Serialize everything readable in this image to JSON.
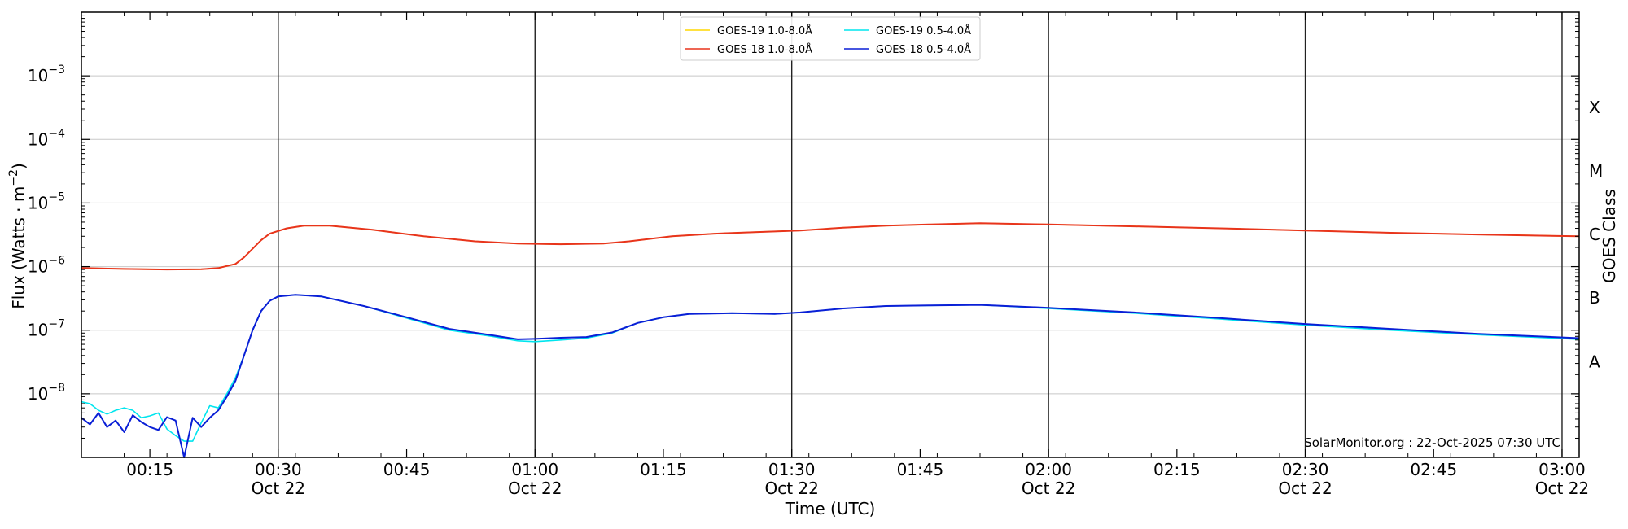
{
  "chart_data": {
    "type": "line",
    "xlabel": "Time (UTC)",
    "ylabel_main": "Flux (Watts · m",
    "ylabel_sup": "−2",
    "ylabel_close": ")",
    "right_label": "GOES Class",
    "credit": "SolarMonitor.org : 22-Oct-2025 07:30 UTC",
    "y_scale": "log",
    "ylim": [
      1e-09,
      0.01
    ],
    "xlim": [
      "2025-10-22T00:07:00Z",
      "2025-10-22T03:02:00Z"
    ],
    "grid": "horizontal at decades",
    "legend_placement": "top-center",
    "x_ticks": [
      {
        "time": "2025-10-22T00:15:00Z",
        "label": "00:15",
        "sublabel": ""
      },
      {
        "time": "2025-10-22T00:30:00Z",
        "label": "00:30",
        "sublabel": "Oct 22"
      },
      {
        "time": "2025-10-22T00:45:00Z",
        "label": "00:45",
        "sublabel": ""
      },
      {
        "time": "2025-10-22T01:00:00Z",
        "label": "01:00",
        "sublabel": "Oct 22"
      },
      {
        "time": "2025-10-22T01:15:00Z",
        "label": "01:15",
        "sublabel": ""
      },
      {
        "time": "2025-10-22T01:30:00Z",
        "label": "01:30",
        "sublabel": "Oct 22"
      },
      {
        "time": "2025-10-22T01:45:00Z",
        "label": "01:45",
        "sublabel": ""
      },
      {
        "time": "2025-10-22T02:00:00Z",
        "label": "02:00",
        "sublabel": "Oct 22"
      },
      {
        "time": "2025-10-22T02:15:00Z",
        "label": "02:15",
        "sublabel": ""
      },
      {
        "time": "2025-10-22T02:30:00Z",
        "label": "02:30",
        "sublabel": "Oct 22"
      },
      {
        "time": "2025-10-22T02:45:00Z",
        "label": "02:45",
        "sublabel": ""
      },
      {
        "time": "2025-10-22T03:00:00Z",
        "label": "03:00",
        "sublabel": "Oct 22"
      }
    ],
    "vertical_lines": [
      "2025-10-22T00:30:00Z",
      "2025-10-22T01:00:00Z",
      "2025-10-22T01:30:00Z",
      "2025-10-22T02:00:00Z",
      "2025-10-22T02:30:00Z",
      "2025-10-22T03:00:00Z"
    ],
    "y_ticks": [
      {
        "value": 1e-08,
        "base": "10",
        "exp": "−8"
      },
      {
        "value": 1e-07,
        "base": "10",
        "exp": "−7"
      },
      {
        "value": 1e-06,
        "base": "10",
        "exp": "−6"
      },
      {
        "value": 1e-05,
        "base": "10",
        "exp": "−5"
      },
      {
        "value": 0.0001,
        "base": "10",
        "exp": "−4"
      },
      {
        "value": 0.001,
        "base": "10",
        "exp": "−3"
      }
    ],
    "goes_classes": [
      {
        "label": "A",
        "value": 3.2e-08
      },
      {
        "label": "B",
        "value": 3.2e-07
      },
      {
        "label": "C",
        "value": 3.2e-06
      },
      {
        "label": "M",
        "value": 3.2e-05
      },
      {
        "label": "X",
        "value": 0.00032
      }
    ],
    "series": [
      {
        "name": "GOES-19 1.0-8.0Å",
        "color": "#ffd700",
        "width": 1.6,
        "points": [
          [
            "2025-10-22T00:07:00Z",
            9.5e-07
          ],
          [
            "2025-10-22T00:12:00Z",
            9.2e-07
          ],
          [
            "2025-10-22T00:17:00Z",
            9e-07
          ],
          [
            "2025-10-22T00:21:00Z",
            9.1e-07
          ],
          [
            "2025-10-22T00:23:00Z",
            9.5e-07
          ],
          [
            "2025-10-22T00:25:00Z",
            1.1e-06
          ],
          [
            "2025-10-22T00:26:00Z",
            1.4e-06
          ],
          [
            "2025-10-22T00:28:00Z",
            2.6e-06
          ],
          [
            "2025-10-22T00:29:00Z",
            3.3e-06
          ],
          [
            "2025-10-22T00:31:00Z",
            4e-06
          ],
          [
            "2025-10-22T00:33:00Z",
            4.4e-06
          ],
          [
            "2025-10-22T00:36:00Z",
            4.4e-06
          ],
          [
            "2025-10-22T00:41:00Z",
            3.8e-06
          ],
          [
            "2025-10-22T00:47:00Z",
            3e-06
          ],
          [
            "2025-10-22T00:53:00Z",
            2.5e-06
          ],
          [
            "2025-10-22T00:58:00Z",
            2.3e-06
          ],
          [
            "2025-10-22T01:03:00Z",
            2.25e-06
          ],
          [
            "2025-10-22T01:08:00Z",
            2.3e-06
          ],
          [
            "2025-10-22T01:11:00Z",
            2.5e-06
          ],
          [
            "2025-10-22T01:16:00Z",
            3e-06
          ],
          [
            "2025-10-22T01:21:00Z",
            3.3e-06
          ],
          [
            "2025-10-22T01:26:00Z",
            3.5e-06
          ],
          [
            "2025-10-22T01:31:00Z",
            3.7e-06
          ],
          [
            "2025-10-22T01:36:00Z",
            4.1e-06
          ],
          [
            "2025-10-22T01:41:00Z",
            4.4e-06
          ],
          [
            "2025-10-22T01:46:00Z",
            4.6e-06
          ],
          [
            "2025-10-22T01:52:00Z",
            4.8e-06
          ],
          [
            "2025-10-22T02:00:00Z",
            4.6e-06
          ],
          [
            "2025-10-22T02:10:00Z",
            4.3e-06
          ],
          [
            "2025-10-22T02:20:00Z",
            4e-06
          ],
          [
            "2025-10-22T02:30:00Z",
            3.7e-06
          ],
          [
            "2025-10-22T02:40:00Z",
            3.4e-06
          ],
          [
            "2025-10-22T02:50:00Z",
            3.2e-06
          ],
          [
            "2025-10-22T03:02:00Z",
            3e-06
          ]
        ]
      },
      {
        "name": "GOES-18 1.0-8.0Å",
        "color": "#e8341c",
        "width": 2,
        "points": [
          [
            "2025-10-22T00:07:00Z",
            9.5e-07
          ],
          [
            "2025-10-22T00:12:00Z",
            9.2e-07
          ],
          [
            "2025-10-22T00:17:00Z",
            9e-07
          ],
          [
            "2025-10-22T00:21:00Z",
            9.1e-07
          ],
          [
            "2025-10-22T00:23:00Z",
            9.5e-07
          ],
          [
            "2025-10-22T00:25:00Z",
            1.1e-06
          ],
          [
            "2025-10-22T00:26:00Z",
            1.4e-06
          ],
          [
            "2025-10-22T00:28:00Z",
            2.6e-06
          ],
          [
            "2025-10-22T00:29:00Z",
            3.3e-06
          ],
          [
            "2025-10-22T00:31:00Z",
            4e-06
          ],
          [
            "2025-10-22T00:33:00Z",
            4.4e-06
          ],
          [
            "2025-10-22T00:36:00Z",
            4.4e-06
          ],
          [
            "2025-10-22T00:41:00Z",
            3.8e-06
          ],
          [
            "2025-10-22T00:47:00Z",
            3e-06
          ],
          [
            "2025-10-22T00:53:00Z",
            2.5e-06
          ],
          [
            "2025-10-22T00:58:00Z",
            2.3e-06
          ],
          [
            "2025-10-22T01:03:00Z",
            2.25e-06
          ],
          [
            "2025-10-22T01:08:00Z",
            2.3e-06
          ],
          [
            "2025-10-22T01:11:00Z",
            2.5e-06
          ],
          [
            "2025-10-22T01:16:00Z",
            3e-06
          ],
          [
            "2025-10-22T01:21:00Z",
            3.3e-06
          ],
          [
            "2025-10-22T01:26:00Z",
            3.5e-06
          ],
          [
            "2025-10-22T01:31:00Z",
            3.7e-06
          ],
          [
            "2025-10-22T01:36:00Z",
            4.1e-06
          ],
          [
            "2025-10-22T01:41:00Z",
            4.4e-06
          ],
          [
            "2025-10-22T01:46:00Z",
            4.6e-06
          ],
          [
            "2025-10-22T01:52:00Z",
            4.8e-06
          ],
          [
            "2025-10-22T02:00:00Z",
            4.6e-06
          ],
          [
            "2025-10-22T02:10:00Z",
            4.3e-06
          ],
          [
            "2025-10-22T02:20:00Z",
            4e-06
          ],
          [
            "2025-10-22T02:30:00Z",
            3.7e-06
          ],
          [
            "2025-10-22T02:40:00Z",
            3.4e-06
          ],
          [
            "2025-10-22T02:50:00Z",
            3.2e-06
          ],
          [
            "2025-10-22T03:02:00Z",
            3e-06
          ]
        ]
      },
      {
        "name": "GOES-19 0.5-4.0Å",
        "color": "#00e5ee",
        "width": 1.6,
        "points": [
          [
            "2025-10-22T00:07:00Z",
            7.5e-09
          ],
          [
            "2025-10-22T00:08:00Z",
            7e-09
          ],
          [
            "2025-10-22T00:09:00Z",
            5.5e-09
          ],
          [
            "2025-10-22T00:10:00Z",
            4.8e-09
          ],
          [
            "2025-10-22T00:11:00Z",
            5.5e-09
          ],
          [
            "2025-10-22T00:12:00Z",
            6e-09
          ],
          [
            "2025-10-22T00:13:00Z",
            5.5e-09
          ],
          [
            "2025-10-22T00:14:00Z",
            4.2e-09
          ],
          [
            "2025-10-22T00:15:00Z",
            4.5e-09
          ],
          [
            "2025-10-22T00:16:00Z",
            5e-09
          ],
          [
            "2025-10-22T00:17:00Z",
            2.8e-09
          ],
          [
            "2025-10-22T00:18:00Z",
            2.2e-09
          ],
          [
            "2025-10-22T00:19:00Z",
            1.8e-09
          ],
          [
            "2025-10-22T00:20:00Z",
            1.8e-09
          ],
          [
            "2025-10-22T00:21:00Z",
            3.5e-09
          ],
          [
            "2025-10-22T00:22:00Z",
            6.5e-09
          ],
          [
            "2025-10-22T00:23:00Z",
            6e-09
          ],
          [
            "2025-10-22T00:24:00Z",
            1e-08
          ],
          [
            "2025-10-22T00:25:00Z",
            1.8e-08
          ],
          [
            "2025-10-22T00:26:00Z",
            4e-08
          ],
          [
            "2025-10-22T00:27:00Z",
            1e-07
          ],
          [
            "2025-10-22T00:28:00Z",
            2e-07
          ],
          [
            "2025-10-22T00:29:00Z",
            2.9e-07
          ],
          [
            "2025-10-22T00:30:00Z",
            3.4e-07
          ],
          [
            "2025-10-22T00:32:00Z",
            3.6e-07
          ],
          [
            "2025-10-22T00:35:00Z",
            3.4e-07
          ],
          [
            "2025-10-22T00:40:00Z",
            2.4e-07
          ],
          [
            "2025-10-22T00:45:00Z",
            1.55e-07
          ],
          [
            "2025-10-22T00:50:00Z",
            1e-07
          ],
          [
            "2025-10-22T00:55:00Z",
            8e-08
          ],
          [
            "2025-10-22T00:58:00Z",
            6.8e-08
          ],
          [
            "2025-10-22T01:00:00Z",
            6.6e-08
          ],
          [
            "2025-10-22T01:03:00Z",
            7e-08
          ],
          [
            "2025-10-22T01:06:00Z",
            7.5e-08
          ],
          [
            "2025-10-22T01:09:00Z",
            9e-08
          ],
          [
            "2025-10-22T01:12:00Z",
            1.3e-07
          ],
          [
            "2025-10-22T01:15:00Z",
            1.6e-07
          ],
          [
            "2025-10-22T01:18:00Z",
            1.8e-07
          ],
          [
            "2025-10-22T01:23:00Z",
            1.85e-07
          ],
          [
            "2025-10-22T01:28:00Z",
            1.8e-07
          ],
          [
            "2025-10-22T01:31:00Z",
            1.9e-07
          ],
          [
            "2025-10-22T01:36:00Z",
            2.2e-07
          ],
          [
            "2025-10-22T01:41:00Z",
            2.4e-07
          ],
          [
            "2025-10-22T01:46:00Z",
            2.45e-07
          ],
          [
            "2025-10-22T01:52:00Z",
            2.5e-07
          ],
          [
            "2025-10-22T02:00:00Z",
            2.2e-07
          ],
          [
            "2025-10-22T02:10:00Z",
            1.85e-07
          ],
          [
            "2025-10-22T02:20:00Z",
            1.5e-07
          ],
          [
            "2025-10-22T02:30:00Z",
            1.2e-07
          ],
          [
            "2025-10-22T02:40:00Z",
            1e-07
          ],
          [
            "2025-10-22T02:50:00Z",
            8.5e-08
          ],
          [
            "2025-10-22T03:02:00Z",
            7.2e-08
          ]
        ]
      },
      {
        "name": "GOES-18 0.5-4.0Å",
        "color": "#0a1fd6",
        "width": 2,
        "points": [
          [
            "2025-10-22T00:07:00Z",
            4.2e-09
          ],
          [
            "2025-10-22T00:08:00Z",
            3.3e-09
          ],
          [
            "2025-10-22T00:09:00Z",
            5e-09
          ],
          [
            "2025-10-22T00:10:00Z",
            3e-09
          ],
          [
            "2025-10-22T00:11:00Z",
            3.8e-09
          ],
          [
            "2025-10-22T00:12:00Z",
            2.5e-09
          ],
          [
            "2025-10-22T00:13:00Z",
            4.6e-09
          ],
          [
            "2025-10-22T00:14:00Z",
            3.6e-09
          ],
          [
            "2025-10-22T00:15:00Z",
            3e-09
          ],
          [
            "2025-10-22T00:16:00Z",
            2.7e-09
          ],
          [
            "2025-10-22T00:17:00Z",
            4.3e-09
          ],
          [
            "2025-10-22T00:18:00Z",
            3.8e-09
          ],
          [
            "2025-10-22T00:19:00Z",
            1e-09
          ],
          [
            "2025-10-22T00:20:00Z",
            4.2e-09
          ],
          [
            "2025-10-22T00:21:00Z",
            3e-09
          ],
          [
            "2025-10-22T00:22:00Z",
            4.2e-09
          ],
          [
            "2025-10-22T00:23:00Z",
            5.5e-09
          ],
          [
            "2025-10-22T00:24:00Z",
            9e-09
          ],
          [
            "2025-10-22T00:25:00Z",
            1.6e-08
          ],
          [
            "2025-10-22T00:26:00Z",
            4e-08
          ],
          [
            "2025-10-22T00:27:00Z",
            1e-07
          ],
          [
            "2025-10-22T00:28:00Z",
            2e-07
          ],
          [
            "2025-10-22T00:29:00Z",
            2.9e-07
          ],
          [
            "2025-10-22T00:30:00Z",
            3.4e-07
          ],
          [
            "2025-10-22T00:32:00Z",
            3.6e-07
          ],
          [
            "2025-10-22T00:35:00Z",
            3.4e-07
          ],
          [
            "2025-10-22T00:40:00Z",
            2.4e-07
          ],
          [
            "2025-10-22T00:45:00Z",
            1.6e-07
          ],
          [
            "2025-10-22T00:50:00Z",
            1.05e-07
          ],
          [
            "2025-10-22T00:55:00Z",
            8.3e-08
          ],
          [
            "2025-10-22T00:58:00Z",
            7.2e-08
          ],
          [
            "2025-10-22T01:00:00Z",
            7.3e-08
          ],
          [
            "2025-10-22T01:03:00Z",
            7.6e-08
          ],
          [
            "2025-10-22T01:06:00Z",
            7.8e-08
          ],
          [
            "2025-10-22T01:09:00Z",
            9.2e-08
          ],
          [
            "2025-10-22T01:12:00Z",
            1.3e-07
          ],
          [
            "2025-10-22T01:15:00Z",
            1.6e-07
          ],
          [
            "2025-10-22T01:18:00Z",
            1.8e-07
          ],
          [
            "2025-10-22T01:23:00Z",
            1.85e-07
          ],
          [
            "2025-10-22T01:28:00Z",
            1.8e-07
          ],
          [
            "2025-10-22T01:31:00Z",
            1.9e-07
          ],
          [
            "2025-10-22T01:36:00Z",
            2.2e-07
          ],
          [
            "2025-10-22T01:41:00Z",
            2.4e-07
          ],
          [
            "2025-10-22T01:46:00Z",
            2.45e-07
          ],
          [
            "2025-10-22T01:52:00Z",
            2.5e-07
          ],
          [
            "2025-10-22T02:00:00Z",
            2.25e-07
          ],
          [
            "2025-10-22T02:10:00Z",
            1.9e-07
          ],
          [
            "2025-10-22T02:20:00Z",
            1.55e-07
          ],
          [
            "2025-10-22T02:30:00Z",
            1.25e-07
          ],
          [
            "2025-10-22T02:40:00Z",
            1.05e-07
          ],
          [
            "2025-10-22T02:50:00Z",
            8.8e-08
          ],
          [
            "2025-10-22T03:02:00Z",
            7.5e-08
          ]
        ]
      }
    ]
  }
}
